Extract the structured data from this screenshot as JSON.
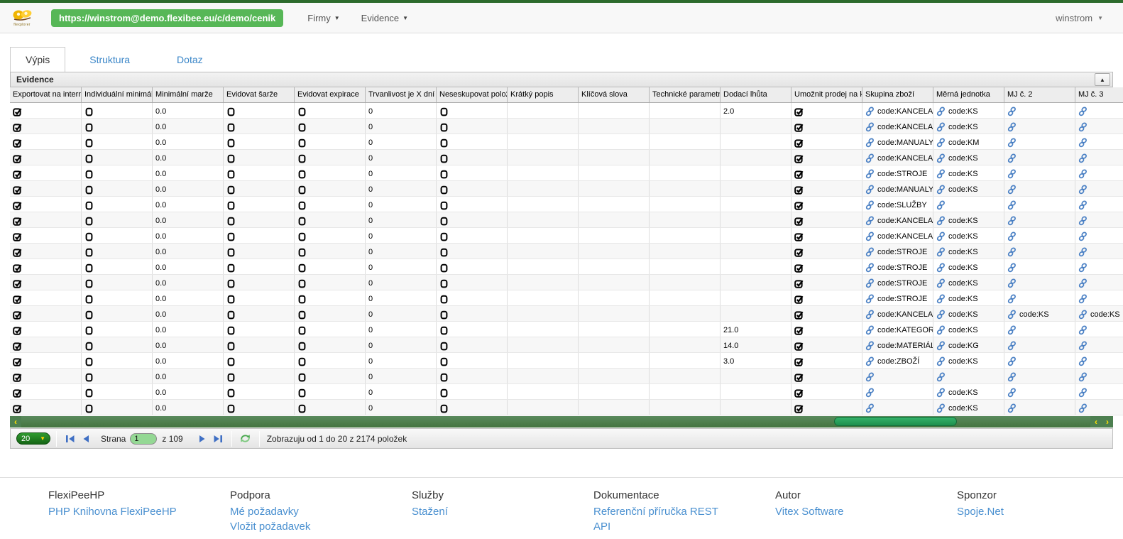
{
  "topbar": {
    "logo_caption": "flexplorer",
    "url_button": "https://winstrom@demo.flexibee.eu/c/demo/cenik",
    "menus": [
      {
        "label": "Firmy"
      },
      {
        "label": "Evidence"
      }
    ],
    "user": "winstrom"
  },
  "tabs": [
    {
      "label": "Výpis",
      "active": true
    },
    {
      "label": "Struktura",
      "active": false
    },
    {
      "label": "Dotaz",
      "active": false
    }
  ],
  "panel": {
    "title": "Evidence"
  },
  "table": {
    "columns": [
      {
        "label": "Exportovat na intern",
        "type": "check"
      },
      {
        "label": "Individuální minimáln",
        "type": "check"
      },
      {
        "label": "Minimální marže",
        "type": "text"
      },
      {
        "label": "Evidovat šarže",
        "type": "check"
      },
      {
        "label": "Evidovat expirace",
        "type": "check"
      },
      {
        "label": "Trvanlivost je X dní p",
        "type": "text"
      },
      {
        "label": "Neseskupovat polož",
        "type": "check"
      },
      {
        "label": "Krátký popis",
        "type": "text"
      },
      {
        "label": "Klíčová slova",
        "type": "text"
      },
      {
        "label": "Technické parametry",
        "type": "text"
      },
      {
        "label": "Dodací lhůta",
        "type": "text"
      },
      {
        "label": "Umožnit prodej na ka",
        "type": "check"
      },
      {
        "label": "Skupina zboží",
        "type": "link"
      },
      {
        "label": "Měrná jednotka",
        "type": "link"
      },
      {
        "label": "MJ č. 2",
        "type": "link"
      },
      {
        "label": "MJ č. 3",
        "type": "link"
      }
    ],
    "rows": [
      [
        true,
        false,
        "0.0",
        false,
        false,
        "0",
        false,
        "",
        "",
        "",
        "2.0",
        true,
        "code:KANCELAR",
        "code:KS",
        "",
        ""
      ],
      [
        true,
        false,
        "0.0",
        false,
        false,
        "0",
        false,
        "",
        "",
        "",
        "",
        true,
        "code:KANCELAR",
        "code:KS",
        "",
        ""
      ],
      [
        true,
        false,
        "0.0",
        false,
        false,
        "0",
        false,
        "",
        "",
        "",
        "",
        true,
        "code:MANUALY",
        "code:KM",
        "",
        ""
      ],
      [
        true,
        false,
        "0.0",
        false,
        false,
        "0",
        false,
        "",
        "",
        "",
        "",
        true,
        "code:KANCELAR",
        "code:KS",
        "",
        ""
      ],
      [
        true,
        false,
        "0.0",
        false,
        false,
        "0",
        false,
        "",
        "",
        "",
        "",
        true,
        "code:STROJE",
        "code:KS",
        "",
        ""
      ],
      [
        true,
        false,
        "0.0",
        false,
        false,
        "0",
        false,
        "",
        "",
        "",
        "",
        true,
        "code:MANUALY",
        "code:KS",
        "",
        ""
      ],
      [
        true,
        false,
        "0.0",
        false,
        false,
        "0",
        false,
        "",
        "",
        "",
        "",
        true,
        "code:SLUŽBY",
        "",
        "",
        ""
      ],
      [
        true,
        false,
        "0.0",
        false,
        false,
        "0",
        false,
        "",
        "",
        "",
        "",
        true,
        "code:KANCELAR",
        "code:KS",
        "",
        ""
      ],
      [
        true,
        false,
        "0.0",
        false,
        false,
        "0",
        false,
        "",
        "",
        "",
        "",
        true,
        "code:KANCELAR",
        "code:KS",
        "",
        ""
      ],
      [
        true,
        false,
        "0.0",
        false,
        false,
        "0",
        false,
        "",
        "",
        "",
        "",
        true,
        "code:STROJE",
        "code:KS",
        "",
        ""
      ],
      [
        true,
        false,
        "0.0",
        false,
        false,
        "0",
        false,
        "",
        "",
        "",
        "",
        true,
        "code:STROJE",
        "code:KS",
        "",
        ""
      ],
      [
        true,
        false,
        "0.0",
        false,
        false,
        "0",
        false,
        "",
        "",
        "",
        "",
        true,
        "code:STROJE",
        "code:KS",
        "",
        ""
      ],
      [
        true,
        false,
        "0.0",
        false,
        false,
        "0",
        false,
        "",
        "",
        "",
        "",
        true,
        "code:STROJE",
        "code:KS",
        "",
        ""
      ],
      [
        true,
        false,
        "0.0",
        false,
        false,
        "0",
        false,
        "",
        "",
        "",
        "",
        true,
        "code:KANCELAR",
        "code:KS",
        "code:KS",
        "code:KS"
      ],
      [
        true,
        false,
        "0.0",
        false,
        false,
        "0",
        false,
        "",
        "",
        "",
        "21.0",
        true,
        "code:KATEGORIE",
        "code:KS",
        "",
        ""
      ],
      [
        true,
        false,
        "0.0",
        false,
        false,
        "0",
        false,
        "",
        "",
        "",
        "14.0",
        true,
        "code:MATERIÁL",
        "code:KG",
        "",
        ""
      ],
      [
        true,
        false,
        "0.0",
        false,
        false,
        "0",
        false,
        "",
        "",
        "",
        "3.0",
        true,
        "code:ZBOŽÍ",
        "code:KS",
        "",
        ""
      ],
      [
        true,
        false,
        "0.0",
        false,
        false,
        "0",
        false,
        "",
        "",
        "",
        "",
        true,
        "",
        "",
        "",
        ""
      ],
      [
        true,
        false,
        "0.0",
        false,
        false,
        "0",
        false,
        "",
        "",
        "",
        "",
        true,
        "",
        "code:KS",
        "",
        ""
      ],
      [
        true,
        false,
        "0.0",
        false,
        false,
        "0",
        false,
        "",
        "",
        "",
        "",
        true,
        "",
        "code:KS",
        "",
        ""
      ]
    ]
  },
  "pagination": {
    "page_size": "20",
    "strana_label": "Strana",
    "page_value": "1",
    "of_label": "z 109",
    "info": "Zobrazuju od 1 do 20 z 2174 položek"
  },
  "footer": {
    "columns": [
      {
        "title": "FlexiPeeHP",
        "links": [
          "PHP Knihovna FlexiPeeHP"
        ]
      },
      {
        "title": "Podpora",
        "links": [
          "Mé požadavky",
          "Vložit požadavek"
        ]
      },
      {
        "title": "Služby",
        "links": [
          "Stažení"
        ]
      },
      {
        "title": "Dokumentace",
        "links": [
          "Referenční příručka REST",
          "API"
        ]
      },
      {
        "title": "Autor",
        "links": [
          "Vitex Software"
        ]
      },
      {
        "title": "Sponzor",
        "links": [
          "Spoje.Net"
        ]
      }
    ]
  },
  "colors": {
    "top_strip": "#2d6b2d",
    "url_button": "#57b757",
    "link_icon": "#4a80c4",
    "scroll_thumb": "#27a45c",
    "accent_blue": "#3a86c8"
  }
}
